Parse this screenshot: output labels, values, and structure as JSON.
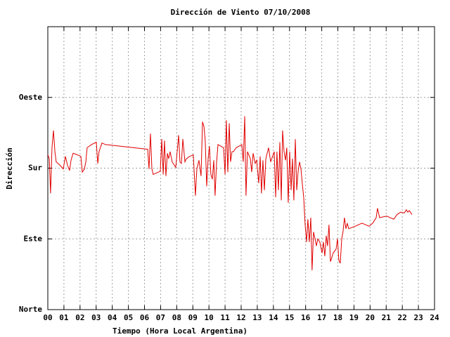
{
  "chart_data": {
    "type": "line",
    "title": "Dirección de Viento 07/10/2008",
    "x_label": "Tiempo (Hora Local Argentina)",
    "y_label": "Dirección",
    "xlim": [
      0,
      24
    ],
    "ylim": [
      0,
      360
    ],
    "grid": true,
    "xticks": [
      {
        "value": 0,
        "label": "00"
      },
      {
        "value": 1,
        "label": "01"
      },
      {
        "value": 2,
        "label": "02"
      },
      {
        "value": 3,
        "label": "03"
      },
      {
        "value": 4,
        "label": "04"
      },
      {
        "value": 5,
        "label": "05"
      },
      {
        "value": 6,
        "label": "06"
      },
      {
        "value": 7,
        "label": "07"
      },
      {
        "value": 8,
        "label": "08"
      },
      {
        "value": 9,
        "label": "09"
      },
      10,
      11,
      12,
      13,
      14,
      15,
      16,
      17,
      18,
      19,
      20,
      21,
      22,
      23,
      24
    ],
    "yticks": [
      {
        "value": 0,
        "label": "Norte"
      },
      {
        "value": 90,
        "label": "Este"
      },
      {
        "value": 180,
        "label": "Sur"
      },
      {
        "value": 270,
        "label": "Oeste"
      }
    ],
    "x": [
      0,
      0.09,
      0.17,
      0.26,
      0.35,
      0.44,
      0.52,
      0.74,
      0.96,
      1.09,
      1.22,
      1.35,
      1.44,
      1.57,
      1.83,
      2.05,
      2.14,
      2.27,
      2.36,
      2.44,
      2.71,
      3.01,
      3.1,
      3.18,
      3.36,
      3.58,
      6.2,
      6.28,
      6.37,
      6.46,
      6.54,
      6.98,
      7.07,
      7.16,
      7.24,
      7.33,
      7.42,
      7.5,
      7.59,
      7.72,
      7.94,
      8.12,
      8.2,
      8.29,
      8.38,
      8.51,
      8.6,
      8.81,
      9.03,
      9.16,
      9.25,
      9.38,
      9.51,
      9.6,
      9.69,
      9.77,
      9.86,
      9.95,
      10.03,
      10.12,
      10.21,
      10.3,
      10.38,
      10.47,
      10.56,
      10.91,
      11.0,
      11.08,
      11.17,
      11.26,
      11.34,
      11.43,
      11.52,
      11.69,
      11.87,
      12.04,
      12.13,
      12.22,
      12.3,
      12.39,
      12.57,
      12.65,
      12.74,
      12.87,
      12.96,
      13.09,
      13.18,
      13.26,
      13.35,
      13.44,
      13.53,
      13.7,
      13.83,
      14.05,
      14.14,
      14.22,
      14.31,
      14.4,
      14.49,
      14.57,
      14.66,
      14.75,
      14.83,
      14.92,
      15.01,
      15.1,
      15.18,
      15.27,
      15.36,
      15.45,
      15.53,
      15.62,
      15.71,
      15.79,
      15.88,
      15.97,
      16.06,
      16.14,
      16.23,
      16.32,
      16.4,
      16.49,
      16.58,
      16.67,
      16.75,
      16.88,
      17.02,
      17.1,
      17.19,
      17.28,
      17.36,
      17.45,
      17.54,
      17.71,
      17.89,
      17.98,
      18.06,
      18.15,
      18.24,
      18.32,
      18.41,
      18.5,
      18.59,
      18.67,
      19.07,
      19.28,
      19.5,
      19.72,
      19.94,
      20.16,
      20.38,
      20.46,
      20.59,
      21.03,
      21.25,
      21.47,
      21.68,
      21.9,
      22.12,
      22.25,
      22.34,
      22.43,
      22.6
    ],
    "series": [
      {
        "color": "#e00000",
        "values": [
          197,
          192,
          148,
          206,
          228,
          201,
          188,
          184,
          179,
          195,
          184,
          177,
          190,
          199,
          197,
          195,
          175,
          179,
          188,
          206,
          210,
          213,
          186,
          201,
          212,
          210,
          204,
          179,
          224,
          179,
          172,
          176,
          217,
          172,
          215,
          170,
          199,
          192,
          201,
          188,
          181,
          222,
          188,
          186,
          217,
          188,
          192,
          195,
          197,
          145,
          179,
          190,
          170,
          239,
          233,
          215,
          157,
          192,
          208,
          172,
          166,
          190,
          145,
          186,
          210,
          206,
          172,
          241,
          175,
          237,
          188,
          201,
          201,
          206,
          208,
          210,
          188,
          246,
          145,
          201,
          192,
          175,
          199,
          186,
          190,
          161,
          195,
          148,
          190,
          152,
          192,
          206,
          188,
          201,
          143,
          201,
          152,
          213,
          139,
          228,
          201,
          190,
          206,
          136,
          201,
          152,
          192,
          139,
          217,
          152,
          175,
          188,
          179,
          161,
          143,
          108,
          86,
          115,
          86,
          117,
          50,
          99,
          90,
          81,
          90,
          86,
          72,
          86,
          68,
          94,
          81,
          108,
          61,
          72,
          77,
          90,
          63,
          59,
          90,
          99,
          117,
          103,
          110,
          103,
          106,
          108,
          110,
          108,
          106,
          110,
          117,
          129,
          117,
          119,
          117,
          115,
          121,
          124,
          123,
          127,
          124,
          126,
          121
        ]
      }
    ]
  }
}
